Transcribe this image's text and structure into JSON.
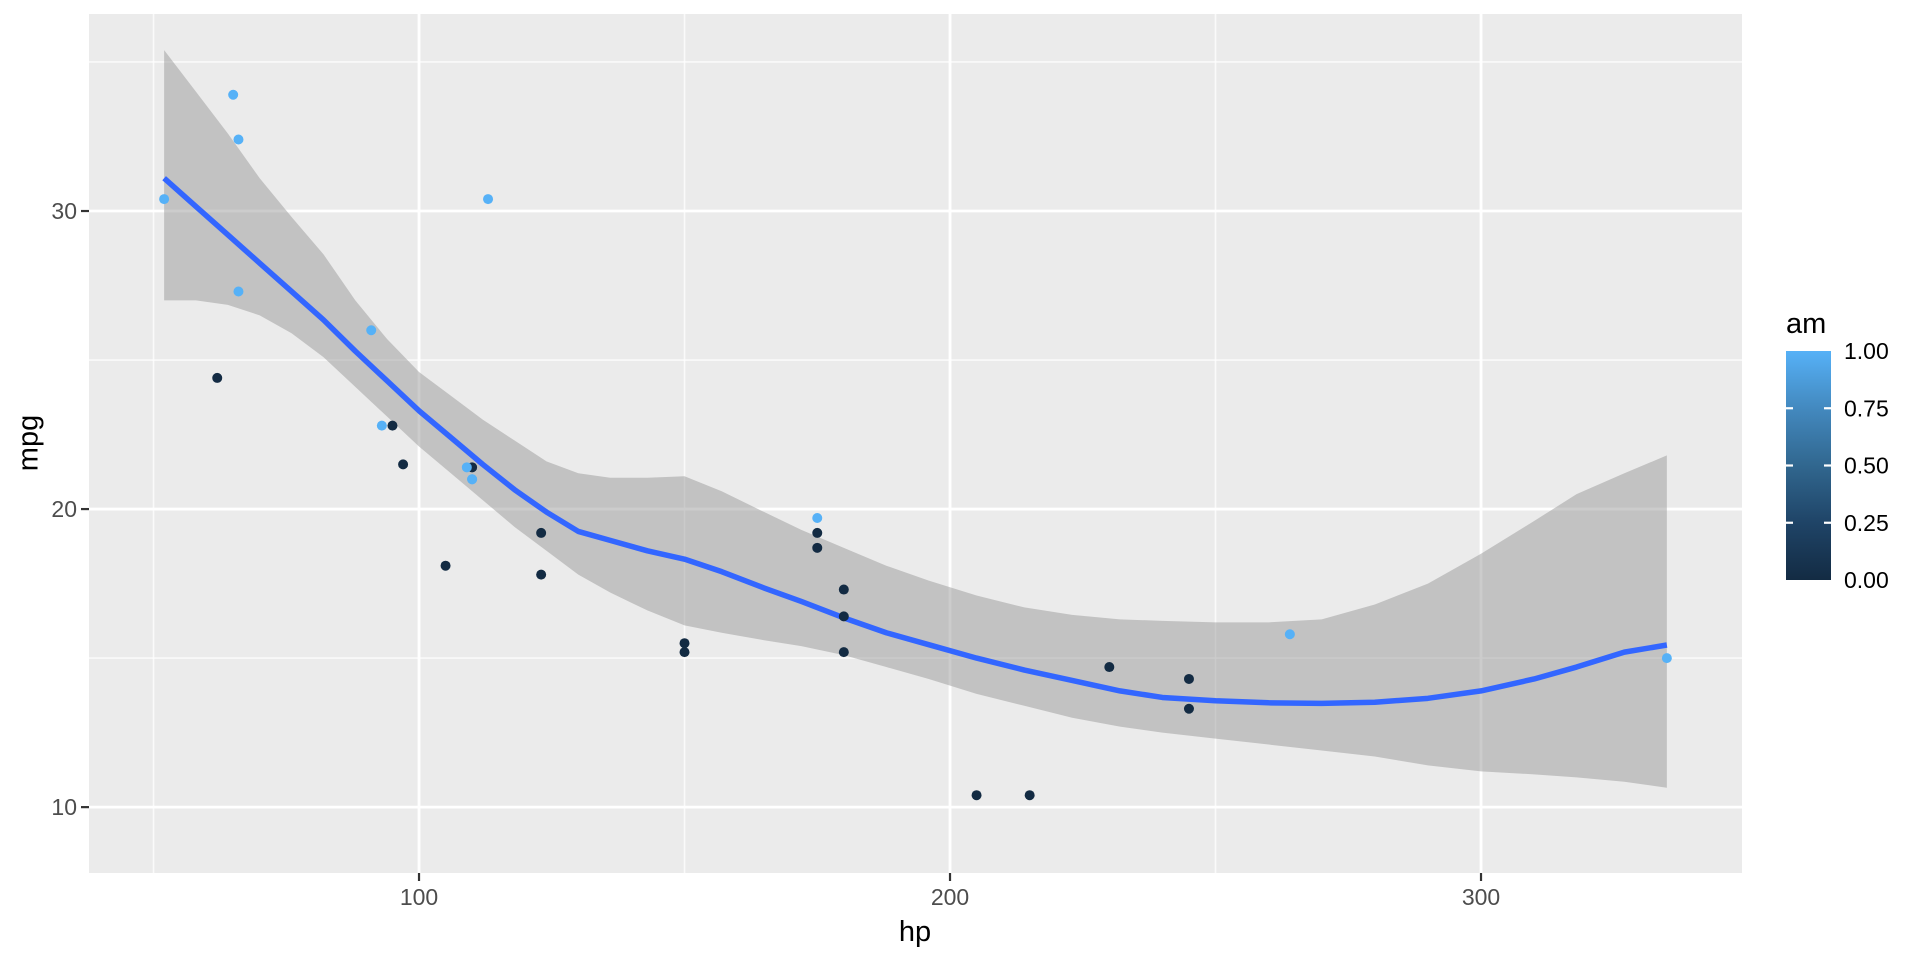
{
  "chart_data": {
    "type": "scatter",
    "title": "",
    "xlabel": "hp",
    "ylabel": "mpg",
    "xlim": [
      37.85,
      349.15
    ],
    "ylim": [
      7.79,
      36.61
    ],
    "x_major_ticks": [
      100,
      200,
      300
    ],
    "x_minor_ticks": [
      50,
      150,
      250
    ],
    "y_major_ticks": [
      10,
      20,
      30
    ],
    "y_minor_ticks": [
      15,
      25,
      35
    ],
    "grid": true,
    "legend": {
      "title": "am",
      "position": "right",
      "breaks": [
        1.0,
        0.75,
        0.5,
        0.25,
        0.0
      ],
      "labels": [
        "1.00",
        "0.75",
        "0.50",
        "0.25",
        "0.00"
      ],
      "low_color": "#132B43",
      "high_color": "#56B1F7"
    },
    "series_note": "points are [hp, mpg, am]; am mapped to continuous gradient",
    "points": [
      [
        110,
        21.0,
        1
      ],
      [
        110,
        21.0,
        1
      ],
      [
        93,
        22.8,
        1
      ],
      [
        110,
        21.4,
        0
      ],
      [
        175,
        18.7,
        0
      ],
      [
        105,
        18.1,
        0
      ],
      [
        245,
        14.3,
        0
      ],
      [
        62,
        24.4,
        0
      ],
      [
        95,
        22.8,
        0
      ],
      [
        123,
        19.2,
        0
      ],
      [
        123,
        17.8,
        0
      ],
      [
        180,
        16.4,
        0
      ],
      [
        180,
        17.3,
        0
      ],
      [
        180,
        15.2,
        0
      ],
      [
        205,
        10.4,
        0
      ],
      [
        215,
        10.4,
        0
      ],
      [
        230,
        14.7,
        0
      ],
      [
        66,
        32.4,
        1
      ],
      [
        52,
        30.4,
        1
      ],
      [
        65,
        33.9,
        1
      ],
      [
        97,
        21.5,
        0
      ],
      [
        150,
        15.5,
        0
      ],
      [
        150,
        15.2,
        0
      ],
      [
        245,
        13.3,
        0
      ],
      [
        175,
        19.2,
        0
      ],
      [
        66,
        27.3,
        1
      ],
      [
        91,
        26.0,
        1
      ],
      [
        113,
        30.4,
        1
      ],
      [
        264,
        15.8,
        1
      ],
      [
        175,
        19.7,
        1
      ],
      [
        335,
        15.0,
        1
      ],
      [
        109,
        21.4,
        1
      ]
    ],
    "smooth": {
      "method": "loess",
      "color": "#3366FF",
      "x": [
        52,
        58,
        64,
        70,
        76,
        82,
        88,
        94,
        100,
        106,
        112,
        118,
        124,
        130,
        136,
        143,
        150,
        157,
        165,
        172,
        180,
        188,
        196,
        205,
        214,
        223,
        232,
        240,
        250,
        260,
        270,
        280,
        290,
        300,
        310,
        318,
        327,
        335
      ],
      "y": [
        31.1,
        30.15,
        29.2,
        28.25,
        27.3,
        26.35,
        25.3,
        24.3,
        23.3,
        22.4,
        21.5,
        20.65,
        19.9,
        19.25,
        18.95,
        18.6,
        18.32,
        17.9,
        17.35,
        16.9,
        16.35,
        15.85,
        15.45,
        15.0,
        14.6,
        14.25,
        13.9,
        13.68,
        13.57,
        13.5,
        13.48,
        13.52,
        13.65,
        13.9,
        14.3,
        14.7,
        15.2,
        15.44
      ],
      "ci_upper": [
        35.4,
        34.0,
        32.6,
        31.1,
        29.8,
        28.55,
        27.0,
        25.7,
        24.6,
        23.8,
        23.0,
        22.3,
        21.6,
        21.2,
        21.05,
        21.05,
        21.1,
        20.6,
        19.9,
        19.3,
        18.7,
        18.1,
        17.6,
        17.1,
        16.7,
        16.45,
        16.3,
        16.25,
        16.2,
        16.2,
        16.3,
        16.8,
        17.5,
        18.5,
        19.6,
        20.5,
        21.2,
        21.8
      ],
      "ci_lower": [
        27.0,
        27.0,
        26.85,
        26.5,
        25.9,
        25.1,
        24.1,
        23.1,
        22.1,
        21.2,
        20.3,
        19.4,
        18.6,
        17.8,
        17.2,
        16.6,
        16.1,
        15.85,
        15.6,
        15.4,
        15.1,
        14.7,
        14.3,
        13.8,
        13.4,
        13.0,
        12.7,
        12.5,
        12.3,
        12.1,
        11.9,
        11.7,
        11.4,
        11.2,
        11.1,
        11.0,
        10.85,
        10.65
      ]
    },
    "colors": {
      "panel_bg": "#EBEBEB",
      "grid": "#FFFFFF",
      "ribbon_fill": "rgba(153,153,153,0.5)",
      "tick_mark": "#333333",
      "tick_text": "#4D4D4D",
      "axis_title": "#000000",
      "point_low": "#132B43",
      "point_high": "#56B1F7",
      "smooth_line": "#3366FF"
    }
  }
}
